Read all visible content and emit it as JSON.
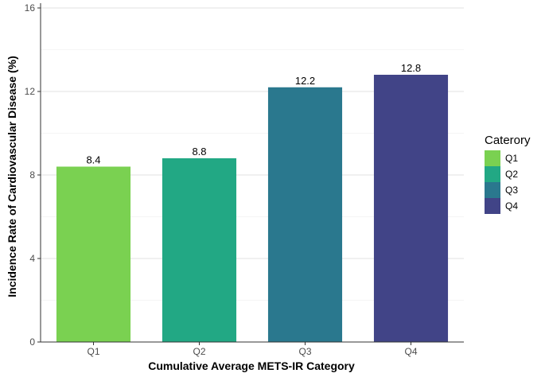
{
  "chart_data": {
    "type": "bar",
    "title": "",
    "xlabel": "Cumulative Average METS-IR Category",
    "ylabel": "Incidence Rate of Cardiovascular Disease (%)",
    "categories": [
      "Q1",
      "Q2",
      "Q3",
      "Q4"
    ],
    "values": [
      8.4,
      8.8,
      12.2,
      12.8
    ],
    "data_labels": [
      "8.4",
      "8.8",
      "12.2",
      "12.8"
    ],
    "colors": [
      "#7AD151",
      "#22A884",
      "#2A788E",
      "#414487"
    ],
    "ylim": [
      0,
      16
    ],
    "yticks": [
      0,
      4,
      8,
      12,
      16
    ],
    "grid": true,
    "legend": {
      "title": "Caterory",
      "position": "right",
      "entries": [
        "Q1",
        "Q2",
        "Q3",
        "Q4"
      ]
    }
  }
}
